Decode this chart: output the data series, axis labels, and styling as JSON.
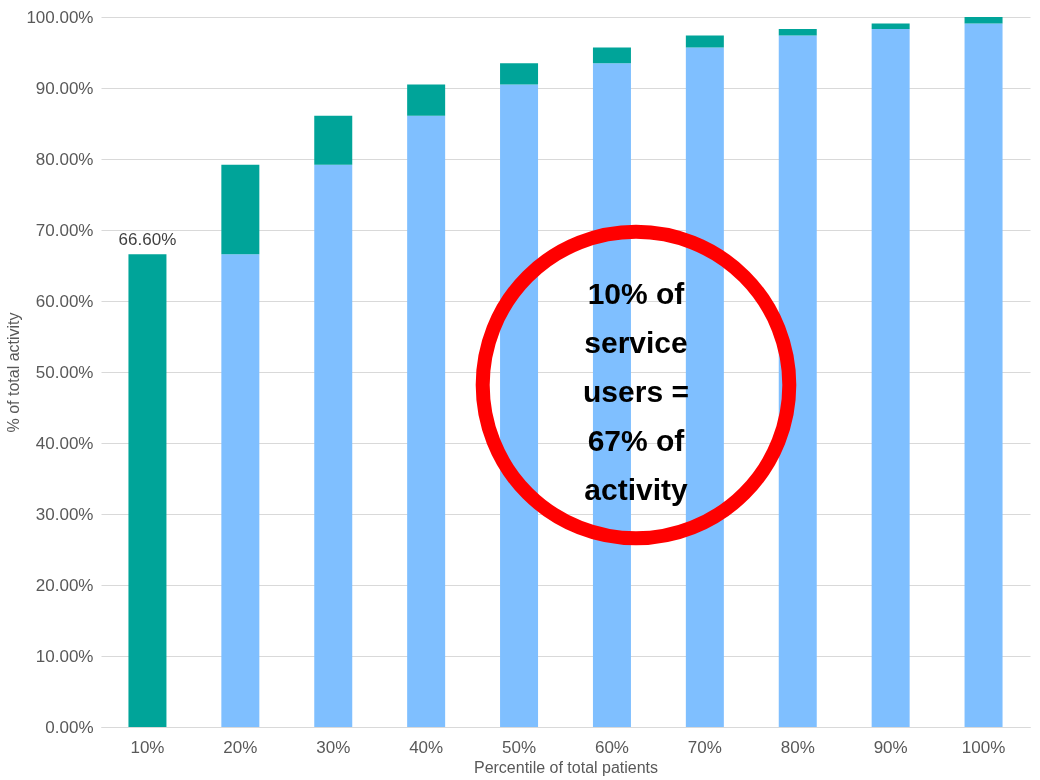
{
  "chart_data": {
    "type": "bar",
    "stacked": true,
    "xlabel": "Percentile of total patients",
    "ylabel": "% of total activity",
    "categories": [
      "10%",
      "20%",
      "30%",
      "40%",
      "50%",
      "60%",
      "70%",
      "80%",
      "90%",
      "100%"
    ],
    "series": [
      {
        "color": "#7fbfff",
        "values": [
          null,
          66.6,
          79.2,
          86.1,
          90.5,
          93.5,
          95.7,
          97.4,
          98.3,
          99.1
        ]
      },
      {
        "color": "#00a499",
        "values": [
          66.6,
          12.6,
          6.9,
          4.4,
          3.0,
          2.2,
          1.7,
          0.9,
          0.8,
          0.9
        ],
        "value_labels": [
          "66.60%",
          null,
          null,
          null,
          null,
          null,
          null,
          null,
          null,
          null
        ]
      }
    ],
    "ylim": [
      0,
      100
    ],
    "yticks": [
      {
        "value": 0,
        "label": "0.00%"
      },
      {
        "value": 10,
        "label": "10.00%"
      },
      {
        "value": 20,
        "label": "20.00%"
      },
      {
        "value": 30,
        "label": "30.00%"
      },
      {
        "value": 40,
        "label": "40.00%"
      },
      {
        "value": 50,
        "label": "50.00%"
      },
      {
        "value": 60,
        "label": "60.00%"
      },
      {
        "value": 70,
        "label": "70.00%"
      },
      {
        "value": 80,
        "label": "80.00%"
      },
      {
        "value": 90,
        "label": "90.00%"
      },
      {
        "value": 100,
        "label": "100.00%"
      }
    ],
    "grid": "y",
    "annotations": [
      "10% of\nservice\nusers =\n67% of\nactivity"
    ]
  }
}
